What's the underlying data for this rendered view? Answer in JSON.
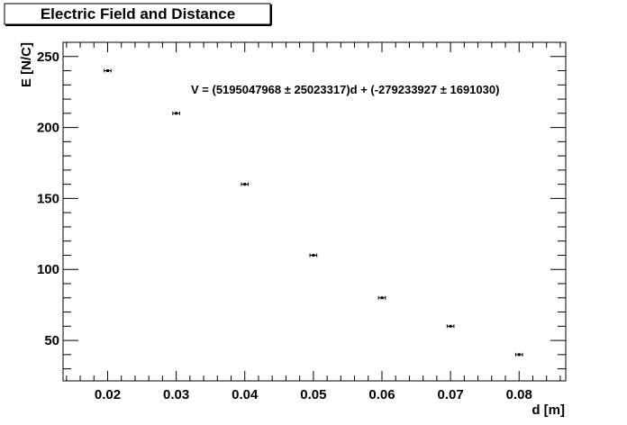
{
  "chart_data": {
    "type": "scatter",
    "title": "Electric Field and Distance",
    "xlabel": "d [m]",
    "ylabel": "E [N/C]",
    "xlim": [
      0.0135,
      0.0868
    ],
    "ylim": [
      21.5,
      260
    ],
    "x_ticks": [
      0.02,
      0.03,
      0.04,
      0.05,
      0.06,
      0.07,
      0.08
    ],
    "x_tick_labels": [
      "0.02",
      "0.03",
      "0.04",
      "0.05",
      "0.06",
      "0.07",
      "0.08"
    ],
    "y_ticks": [
      50,
      100,
      150,
      200,
      250
    ],
    "y_tick_labels": [
      "50",
      "100",
      "150",
      "200",
      "250"
    ],
    "x": [
      0.02,
      0.03,
      0.04,
      0.05,
      0.06,
      0.07,
      0.08
    ],
    "y": [
      240,
      210,
      160,
      110,
      80,
      60,
      40
    ],
    "x_error": 0.0005,
    "annotation": "V = (5195047968 ± 25023317)d + (-279233927 ± 1691030)",
    "grid": false,
    "colors": {
      "marker": "#000000",
      "frame": "#000000",
      "background": "#ffffff"
    }
  }
}
